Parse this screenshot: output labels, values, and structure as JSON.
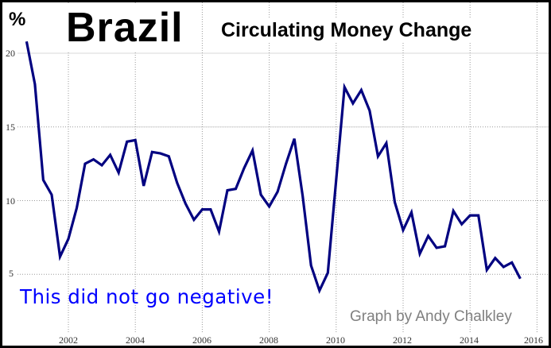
{
  "chart_data": {
    "type": "line",
    "title": "Brazil",
    "subtitle": "Circulating Money Change",
    "ylabel": "%",
    "xlabel": "",
    "annotations": [
      "This did not go negative!",
      "Graph by Andy Chalkley"
    ],
    "xlim": [
      2000.6,
      2016.2
    ],
    "ylim": [
      0,
      21.5
    ],
    "grid": true,
    "x_ticks": [
      2002,
      2004,
      2006,
      2008,
      2010,
      2012,
      2014,
      2016
    ],
    "y_ticks": [
      5,
      10,
      15,
      20
    ],
    "series": [
      {
        "name": "Circulating Money Change (%)",
        "color": "#000080",
        "x": [
          2000.75,
          2001.0,
          2001.25,
          2001.5,
          2001.75,
          2002.0,
          2002.25,
          2002.5,
          2002.75,
          2003.0,
          2003.25,
          2003.5,
          2003.75,
          2004.0,
          2004.25,
          2004.5,
          2004.75,
          2005.0,
          2005.25,
          2005.5,
          2005.75,
          2006.0,
          2006.25,
          2006.5,
          2006.75,
          2007.0,
          2007.25,
          2007.5,
          2007.75,
          2008.0,
          2008.25,
          2008.5,
          2008.75,
          2009.0,
          2009.25,
          2009.5,
          2009.75,
          2010.0,
          2010.25,
          2010.5,
          2010.75,
          2011.0,
          2011.25,
          2011.5,
          2011.75,
          2012.0,
          2012.25,
          2012.5,
          2012.75,
          2013.0,
          2013.25,
          2013.5,
          2013.75,
          2014.0,
          2014.25,
          2014.5,
          2014.75,
          2015.0,
          2015.25,
          2015.5
        ],
        "values": [
          20.8,
          17.9,
          11.4,
          10.4,
          6.2,
          7.4,
          9.5,
          12.5,
          12.8,
          12.4,
          13.1,
          11.9,
          14.0,
          14.1,
          11.0,
          13.3,
          13.2,
          13.0,
          11.2,
          9.8,
          8.7,
          9.4,
          9.4,
          7.9,
          10.7,
          10.8,
          12.2,
          13.4,
          10.4,
          9.6,
          10.6,
          12.5,
          14.2,
          10.3,
          5.6,
          3.9,
          5.1,
          11.4,
          17.7,
          16.6,
          17.5,
          16.1,
          13.0,
          13.9,
          9.9,
          8.0,
          9.2,
          6.4,
          7.6,
          6.8,
          6.9,
          9.3,
          8.4,
          9.0,
          9.0,
          5.3,
          6.1,
          5.5,
          5.8,
          4.7
        ]
      }
    ]
  },
  "labels": {
    "title": "Brazil",
    "subtitle": "Circulating Money Change",
    "unit": "%",
    "note": "This did not go negative!",
    "credit": "Graph by Andy Chalkley",
    "yticks": [
      "20",
      "15",
      "10",
      "5"
    ],
    "xticks": [
      "2002",
      "2004",
      "2006",
      "2008",
      "2010",
      "2012",
      "2014",
      "2016"
    ]
  },
  "colors": {
    "line": "#000080",
    "note": "#0000ff",
    "credit": "#808080",
    "grid": "#a0a0a0",
    "border": "#000000"
  }
}
